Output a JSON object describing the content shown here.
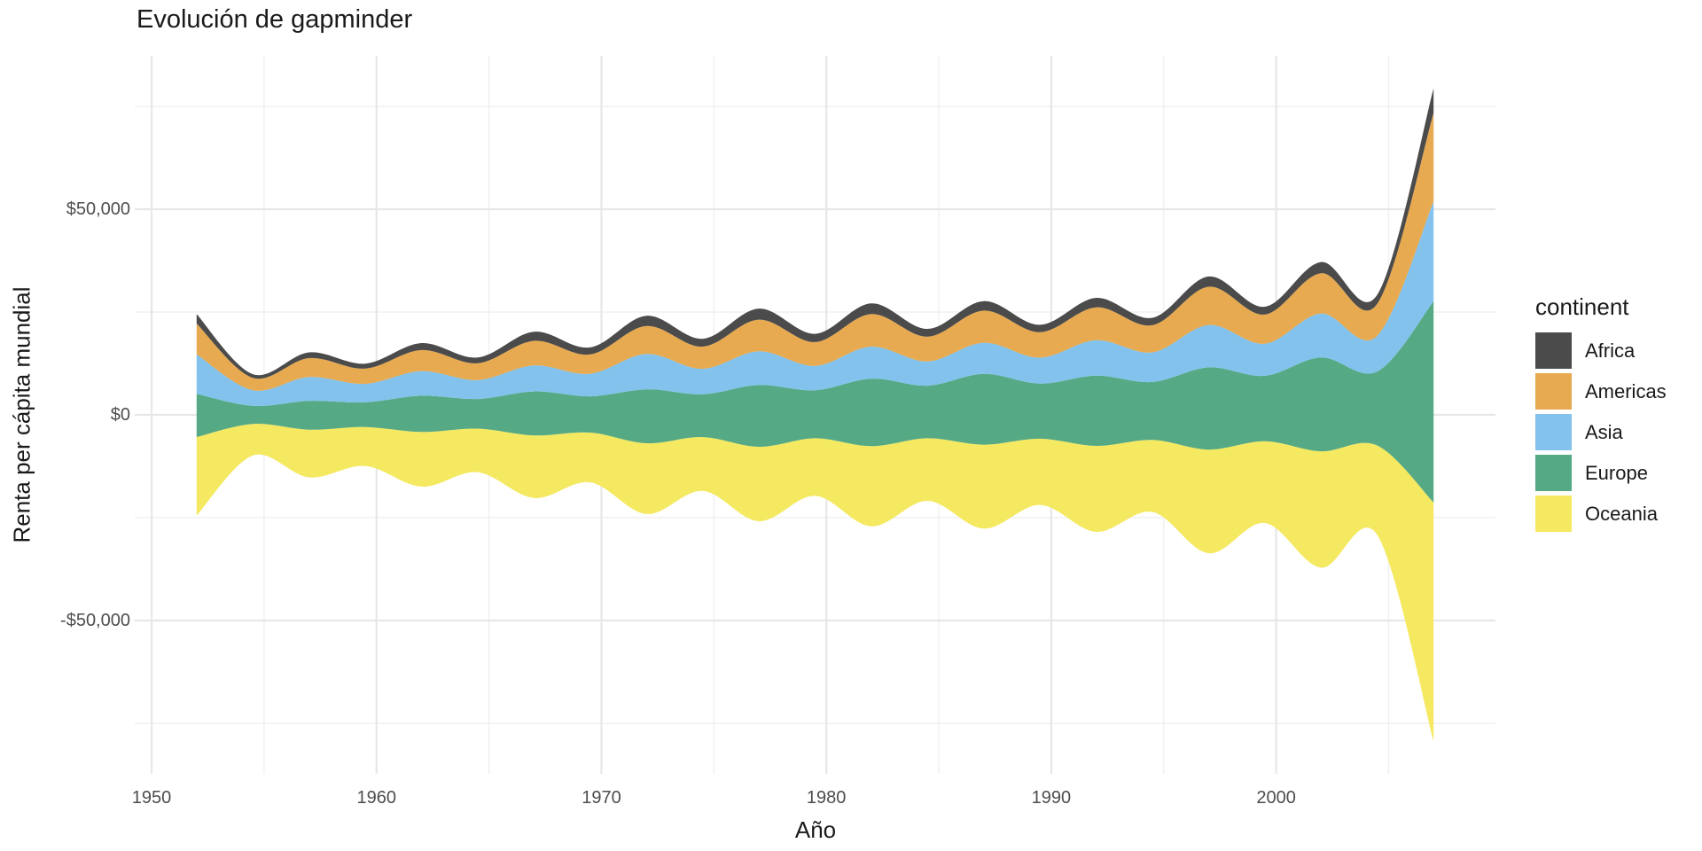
{
  "title": "Evolución de gapminder",
  "axes": {
    "x": {
      "title": "Año",
      "ticks": [
        {
          "label": "1950",
          "value": 1950
        },
        {
          "label": "1960",
          "value": 1960
        },
        {
          "label": "1970",
          "value": 1970
        },
        {
          "label": "1980",
          "value": 1980
        },
        {
          "label": "1990",
          "value": 1990
        },
        {
          "label": "2000",
          "value": 2000
        }
      ],
      "minor_values": [
        1955,
        1965,
        1975,
        1985,
        1995,
        2005
      ],
      "domain": [
        1949.25,
        2009.75
      ]
    },
    "y": {
      "title": "Renta per cápita mundial",
      "ticks": [
        {
          "label": "$50,000",
          "value": 50000
        },
        {
          "label": "$0",
          "value": 0
        },
        {
          "label": "-$50,000",
          "value": -50000
        }
      ],
      "minor_values": [
        75000,
        25000,
        -25000,
        -75000
      ],
      "domain": [
        -87340,
        87340
      ]
    }
  },
  "legend": {
    "title": "continent",
    "items": [
      {
        "label": "Africa",
        "color": "#4b4b4b"
      },
      {
        "label": "Americas",
        "color": "#e7aa50"
      },
      {
        "label": "Asia",
        "color": "#82c2ec"
      },
      {
        "label": "Europe",
        "color": "#56a985"
      },
      {
        "label": "Oceania",
        "color": "#f4e961"
      }
    ]
  },
  "colors": {
    "background": "#ffffff",
    "grid_major": "#e7e7e7",
    "grid_minor": "#f0f0f0",
    "tick_text": "#4d4d4d",
    "title_text": "#1a1a1a"
  },
  "chart_data": {
    "type": "area",
    "variant": "streamgraph-mirror",
    "title": "Evolución de gapminder",
    "xlabel": "Año",
    "ylabel": "Renta per cápita mundial",
    "xlim": [
      1949.25,
      2009.75
    ],
    "ylim": [
      -87340,
      87340
    ],
    "grid": "on",
    "legend_position": "right",
    "baseline": "mirror (stack centered on $0)",
    "stack_order_bottom_to_top": [
      "Oceania",
      "Europe",
      "Asia",
      "Americas",
      "Africa"
    ],
    "x": [
      1952,
      1954.5,
      1957,
      1959.5,
      1962,
      1964.5,
      1967,
      1969.5,
      1972,
      1974.5,
      1977,
      1979.5,
      1982,
      1984.5,
      1987,
      1989.5,
      1992,
      1994.5,
      1997,
      1999.5,
      2002,
      2004.5,
      2007
    ],
    "series": [
      {
        "name": "Africa",
        "color": "#4b4b4b",
        "values": [
          2300,
          900,
          1400,
          1200,
          1700,
          1400,
          2200,
          1700,
          2500,
          1900,
          2700,
          2000,
          2600,
          1900,
          2300,
          1800,
          2300,
          1800,
          2500,
          1900,
          2700,
          2200,
          6000
        ]
      },
      {
        "name": "Americas",
        "color": "#e7aa50",
        "values": [
          7500,
          3000,
          4600,
          3700,
          5100,
          4100,
          6000,
          4700,
          6800,
          5400,
          7700,
          5800,
          7900,
          6000,
          7800,
          6200,
          8000,
          6600,
          9300,
          7100,
          9800,
          7800,
          21500
        ]
      },
      {
        "name": "Asia",
        "color": "#82c2ec",
        "values": [
          9600,
          3800,
          5800,
          4500,
          6000,
          4600,
          6300,
          5500,
          8600,
          6200,
          8200,
          5900,
          7800,
          5900,
          7600,
          6300,
          8600,
          7200,
          10300,
          7800,
          10700,
          8700,
          24300
        ]
      },
      {
        "name": "Europe",
        "color": "#56a985",
        "values": [
          10500,
          4400,
          7000,
          6000,
          8800,
          7200,
          10700,
          8800,
          13100,
          10400,
          15000,
          11700,
          16400,
          12800,
          17200,
          13400,
          17100,
          14100,
          20000,
          15900,
          22800,
          18000,
          48900
        ]
      },
      {
        "name": "Oceania",
        "color": "#f4e961",
        "values": [
          19100,
          7700,
          11600,
          9500,
          13300,
          10600,
          15200,
          12100,
          17200,
          13100,
          18100,
          14000,
          19500,
          15200,
          20400,
          16100,
          20900,
          17500,
          25200,
          19900,
          28300,
          21800,
          58100
        ]
      }
    ]
  }
}
